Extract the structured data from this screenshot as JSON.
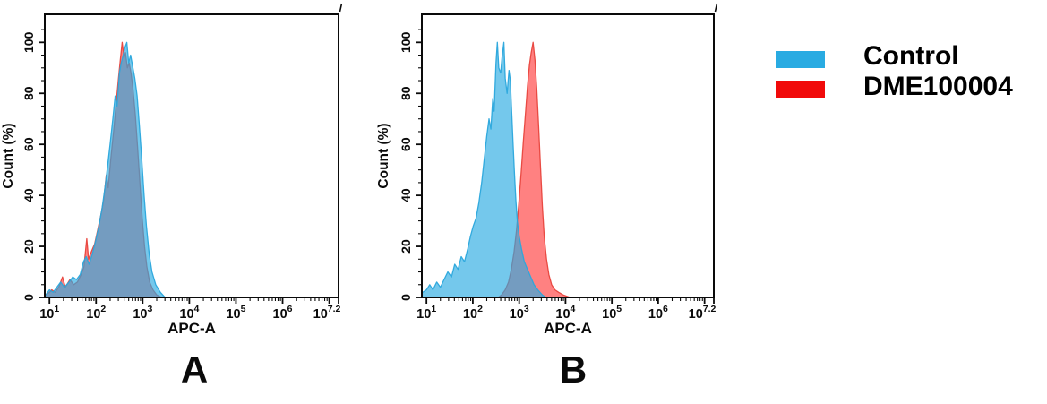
{
  "figure": {
    "legend": {
      "items": [
        {
          "label": "Control",
          "color": "#29ABE2"
        },
        {
          "label": "DME100004",
          "color": "#F10A0A"
        }
      ]
    },
    "panels": [
      {
        "letter": "A"
      },
      {
        "letter": "B"
      }
    ]
  },
  "chart_data": [
    {
      "type": "area",
      "panel": "A",
      "title": "",
      "xlabel": "APC-A",
      "ylabel": "Count (%)",
      "x_scale": "log10",
      "x_domain_exponents": [
        0.9,
        7.2
      ],
      "x_major_ticks_labeled": [
        "1",
        "2",
        "3",
        "4",
        "5",
        "6",
        "7.2"
      ],
      "x_major_ticks_unlabeled": [
        7
      ],
      "x_tick_base": "10",
      "y_ticks": [
        "0",
        "20",
        "40",
        "60",
        "80",
        "100"
      ],
      "ylim": [
        0,
        111
      ],
      "grid": false,
      "legend_position": "outside-right",
      "series": [
        {
          "name": "DME100004",
          "fill": "#FF1A1A",
          "fill_opacity": 0.55,
          "stroke": "#E8433C",
          "points_log10x_ypct": [
            [
              0.92,
              1
            ],
            [
              1.0,
              2
            ],
            [
              1.05,
              3
            ],
            [
              1.12,
              2
            ],
            [
              1.2,
              4
            ],
            [
              1.28,
              8
            ],
            [
              1.34,
              4
            ],
            [
              1.44,
              7
            ],
            [
              1.52,
              5
            ],
            [
              1.6,
              6
            ],
            [
              1.68,
              9
            ],
            [
              1.74,
              12
            ],
            [
              1.8,
              23
            ],
            [
              1.84,
              15
            ],
            [
              1.9,
              18
            ],
            [
              1.97,
              21
            ],
            [
              2.03,
              26
            ],
            [
              2.1,
              32
            ],
            [
              2.16,
              38
            ],
            [
              2.22,
              48
            ],
            [
              2.26,
              43
            ],
            [
              2.32,
              55
            ],
            [
              2.38,
              66
            ],
            [
              2.43,
              76
            ],
            [
              2.48,
              86
            ],
            [
              2.52,
              93
            ],
            [
              2.56,
              100
            ],
            [
              2.6,
              94
            ],
            [
              2.63,
              96
            ],
            [
              2.67,
              90
            ],
            [
              2.71,
              92
            ],
            [
              2.75,
              88
            ],
            [
              2.79,
              82
            ],
            [
              2.84,
              72
            ],
            [
              2.89,
              59
            ],
            [
              2.94,
              45
            ],
            [
              2.99,
              31
            ],
            [
              3.04,
              20
            ],
            [
              3.09,
              12
            ],
            [
              3.15,
              6
            ],
            [
              3.22,
              3
            ],
            [
              3.3,
              1
            ],
            [
              3.4,
              0
            ]
          ]
        },
        {
          "name": "Control",
          "fill": "#29ABE2",
          "fill_opacity": 0.65,
          "stroke": "#2AA7DC",
          "points_log10x_ypct": [
            [
              0.92,
              1
            ],
            [
              1.0,
              3
            ],
            [
              1.08,
              2
            ],
            [
              1.16,
              4
            ],
            [
              1.24,
              6
            ],
            [
              1.32,
              4
            ],
            [
              1.42,
              6
            ],
            [
              1.5,
              8
            ],
            [
              1.58,
              7
            ],
            [
              1.66,
              9
            ],
            [
              1.73,
              14
            ],
            [
              1.79,
              16
            ],
            [
              1.85,
              13
            ],
            [
              1.92,
              17
            ],
            [
              1.99,
              22
            ],
            [
              2.06,
              28
            ],
            [
              2.13,
              35
            ],
            [
              2.19,
              43
            ],
            [
              2.25,
              52
            ],
            [
              2.3,
              60
            ],
            [
              2.36,
              70
            ],
            [
              2.41,
              79
            ],
            [
              2.45,
              75
            ],
            [
              2.5,
              88
            ],
            [
              2.54,
              92
            ],
            [
              2.58,
              95
            ],
            [
              2.62,
              98
            ],
            [
              2.66,
              100
            ],
            [
              2.7,
              92
            ],
            [
              2.74,
              95
            ],
            [
              2.78,
              91
            ],
            [
              2.83,
              86
            ],
            [
              2.88,
              79
            ],
            [
              2.93,
              67
            ],
            [
              2.98,
              54
            ],
            [
              3.03,
              40
            ],
            [
              3.08,
              28
            ],
            [
              3.14,
              17
            ],
            [
              3.2,
              10
            ],
            [
              3.28,
              5
            ],
            [
              3.38,
              2
            ],
            [
              3.48,
              0
            ]
          ]
        }
      ]
    },
    {
      "type": "area",
      "panel": "B",
      "title": "",
      "xlabel": "APC-A",
      "ylabel": "Count (%)",
      "x_scale": "log10",
      "x_domain_exponents": [
        0.9,
        7.2
      ],
      "x_major_ticks_labeled": [
        "1",
        "2",
        "3",
        "4",
        "5",
        "6",
        "7.2"
      ],
      "x_major_ticks_unlabeled": [
        7
      ],
      "x_tick_base": "10",
      "y_ticks": [
        "0",
        "20",
        "40",
        "60",
        "80",
        "100"
      ],
      "ylim": [
        0,
        111
      ],
      "grid": false,
      "legend_position": "outside-right",
      "series": [
        {
          "name": "DME100004",
          "fill": "#FF1A1A",
          "fill_opacity": 0.55,
          "stroke": "#E8433C",
          "points_log10x_ypct": [
            [
              2.55,
              0
            ],
            [
              2.62,
              1
            ],
            [
              2.7,
              3
            ],
            [
              2.77,
              6
            ],
            [
              2.83,
              11
            ],
            [
              2.89,
              18
            ],
            [
              2.94,
              26
            ],
            [
              2.99,
              36
            ],
            [
              3.04,
              48
            ],
            [
              3.09,
              61
            ],
            [
              3.14,
              73
            ],
            [
              3.18,
              83
            ],
            [
              3.22,
              91
            ],
            [
              3.26,
              96
            ],
            [
              3.3,
              100
            ],
            [
              3.34,
              93
            ],
            [
              3.38,
              82
            ],
            [
              3.42,
              67
            ],
            [
              3.46,
              51
            ],
            [
              3.5,
              36
            ],
            [
              3.54,
              24
            ],
            [
              3.59,
              15
            ],
            [
              3.64,
              9
            ],
            [
              3.7,
              5
            ],
            [
              3.77,
              3
            ],
            [
              3.85,
              2
            ],
            [
              3.95,
              1
            ],
            [
              4.1,
              0
            ]
          ]
        },
        {
          "name": "Control",
          "fill": "#29ABE2",
          "fill_opacity": 0.65,
          "stroke": "#2AA7DC",
          "points_log10x_ypct": [
            [
              0.92,
              2
            ],
            [
              1.0,
              3
            ],
            [
              1.07,
              5
            ],
            [
              1.14,
              3
            ],
            [
              1.22,
              6
            ],
            [
              1.3,
              4
            ],
            [
              1.38,
              7
            ],
            [
              1.46,
              10
            ],
            [
              1.54,
              8
            ],
            [
              1.61,
              13
            ],
            [
              1.68,
              11
            ],
            [
              1.75,
              16
            ],
            [
              1.82,
              14
            ],
            [
              1.89,
              19
            ],
            [
              1.95,
              24
            ],
            [
              2.01,
              28
            ],
            [
              2.07,
              31
            ],
            [
              2.13,
              37
            ],
            [
              2.19,
              45
            ],
            [
              2.25,
              55
            ],
            [
              2.3,
              63
            ],
            [
              2.35,
              70
            ],
            [
              2.39,
              66
            ],
            [
              2.43,
              78
            ],
            [
              2.46,
              73
            ],
            [
              2.5,
              92
            ],
            [
              2.53,
              100
            ],
            [
              2.56,
              90
            ],
            [
              2.6,
              88
            ],
            [
              2.63,
              94
            ],
            [
              2.67,
              100
            ],
            [
              2.7,
              86
            ],
            [
              2.74,
              80
            ],
            [
              2.78,
              89
            ],
            [
              2.81,
              85
            ],
            [
              2.84,
              72
            ],
            [
              2.87,
              60
            ],
            [
              2.9,
              48
            ],
            [
              2.93,
              38
            ],
            [
              2.96,
              30
            ],
            [
              3.0,
              24
            ],
            [
              3.05,
              19
            ],
            [
              3.11,
              14
            ],
            [
              3.18,
              11
            ],
            [
              3.25,
              8
            ],
            [
              3.32,
              5
            ],
            [
              3.4,
              3
            ],
            [
              3.5,
              1
            ],
            [
              3.58,
              0
            ]
          ]
        }
      ]
    }
  ]
}
